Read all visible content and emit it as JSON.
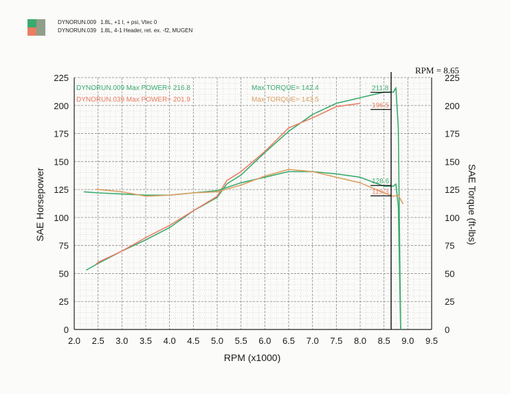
{
  "legend": [
    {
      "name": "DYNORUN.009",
      "desc": "1.8L, +1 I, + psi, Vtec 0",
      "color": "#3aaa6e"
    },
    {
      "name": "DYNORUN.039",
      "desc": "1.8L, 4-1 Header, ret. ex. -f2, MUGEN",
      "color": "#ea7d62"
    }
  ],
  "cursor": {
    "label": "RPM = 8.65",
    "rpm": 8.65
  },
  "chart_data": {
    "type": "line",
    "xlabel": "RPM (x1000)",
    "ylabel": "SAE Horsepower",
    "y2label": "SAE Torque (ft-lbs)",
    "xlim": [
      2.0,
      9.5
    ],
    "ylim": [
      0,
      225
    ],
    "y2lim": [
      0,
      225
    ],
    "xticks": [
      "2.0",
      "2.5",
      "3.0",
      "3.5",
      "4.0",
      "4.5",
      "5.0",
      "5.5",
      "6.0",
      "6.5",
      "7.0",
      "7.5",
      "8.0",
      "8.5",
      "9.0",
      "9.5"
    ],
    "yticks": [
      "0",
      "25",
      "50",
      "75",
      "100",
      "125",
      "150",
      "175",
      "200",
      "225"
    ],
    "grid": true,
    "annotations": [
      {
        "text": "DYNORUN.009  Max POWER= 216.8",
        "series": "DYNORUN.009"
      },
      {
        "text": "DYNORUN.039  Max POWER= 201.9",
        "series": "DYNORUN.039"
      },
      {
        "text": "Max TORQUE= 142.4",
        "series": "DYNORUN.009"
      },
      {
        "text": "Max TORQUE= 143.5",
        "series": "DYNORUN.039"
      },
      {
        "text": "211.8",
        "series": "DYNORUN.009",
        "x": 8.65,
        "y": 211.8
      },
      {
        "text": "196.5",
        "series": "DYNORUN.039",
        "x": 8.65,
        "y": 196.5
      },
      {
        "text": "128.6",
        "series": "DYNORUN.009",
        "x": 8.65,
        "y": 128.6
      },
      {
        "text": "119.3",
        "series": "DYNORUN.039",
        "x": 8.65,
        "y": 119.3
      }
    ],
    "series": [
      {
        "name": "DYNORUN.009",
        "kind": "power",
        "color": "#3aaa6e",
        "x": [
          2.25,
          2.5,
          3.0,
          3.5,
          4.0,
          4.5,
          5.0,
          5.2,
          5.5,
          6.0,
          6.5,
          7.0,
          7.5,
          8.0,
          8.5,
          8.7,
          8.75,
          8.8,
          8.85
        ],
        "y": [
          53,
          59,
          70,
          80,
          91,
          106,
          118,
          130,
          138,
          158,
          177,
          192,
          202,
          207,
          212,
          212,
          216,
          180,
          0
        ]
      },
      {
        "name": "DYNORUN.039",
        "kind": "power",
        "color": "#ea7d62",
        "x": [
          2.45,
          2.5,
          3.0,
          3.5,
          4.0,
          4.5,
          5.0,
          5.2,
          5.5,
          6.0,
          6.5,
          7.0,
          7.5,
          8.0
        ],
        "y": [
          58,
          60,
          70,
          82,
          93,
          106,
          119,
          133,
          141,
          159,
          180,
          189,
          199,
          202
        ]
      },
      {
        "name": "DYNORUN.009",
        "kind": "torque",
        "color": "#3aaa6e",
        "x": [
          2.2,
          2.5,
          3.0,
          3.5,
          4.0,
          4.5,
          5.0,
          5.5,
          6.0,
          6.5,
          7.0,
          7.5,
          8.0,
          8.5,
          8.7,
          8.75,
          8.8,
          8.85
        ],
        "y": [
          123,
          122,
          121,
          120,
          120,
          122,
          124,
          131,
          136,
          141,
          141,
          139,
          136,
          128,
          128,
          130,
          110,
          0
        ]
      },
      {
        "name": "DYNORUN.039",
        "kind": "torque",
        "color": "#d9a061",
        "x": [
          2.45,
          2.5,
          3.0,
          3.5,
          4.0,
          4.5,
          5.0,
          5.5,
          6.0,
          6.5,
          7.0,
          7.5,
          8.0,
          8.5,
          8.7,
          8.8,
          8.9
        ],
        "y": [
          125,
          125,
          123,
          119,
          120,
          122,
          123,
          129,
          137,
          143,
          141,
          136,
          131,
          122,
          119,
          120,
          112
        ]
      }
    ]
  }
}
